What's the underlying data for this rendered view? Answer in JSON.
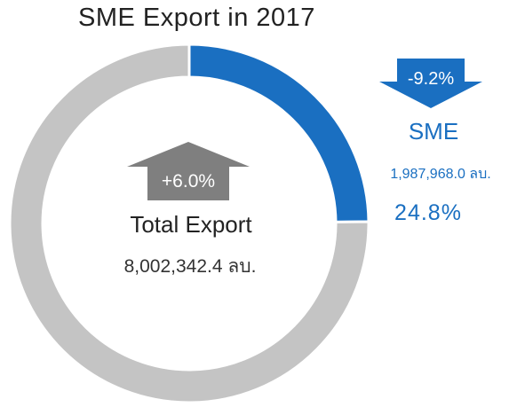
{
  "chart_data": {
    "type": "pie",
    "style": "donut",
    "title": "SME Export in 2017",
    "slices": [
      {
        "label": "SME",
        "value": 1987968.0,
        "display_value": "1,987,968.0 ลบ.",
        "share": "24.8%",
        "change": "-9.2%",
        "change_direction": "down",
        "color": "#1a6fc1"
      },
      {
        "label": "Total Export",
        "value": 6014374.4,
        "color": "#c4c4c4"
      }
    ],
    "total": {
      "label": "Total Export",
      "display_value": "8,002,342.4 ลบ.",
      "change": "+6.0%",
      "change_direction": "up"
    }
  },
  "colors": {
    "sme_blue": "#1a6fc1",
    "total_gray": "#7f7f7f",
    "ring_gray": "#c4c4c4",
    "text_dark": "#222222"
  }
}
